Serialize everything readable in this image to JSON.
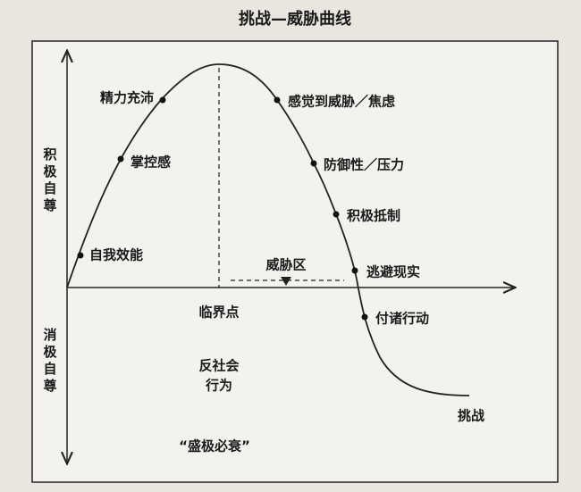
{
  "title": "挑战—威胁曲线",
  "axis_labels": {
    "positive": "积极自尊",
    "negative": "消极自尊"
  },
  "points": [
    {
      "label": "自我效能"
    },
    {
      "label": "掌控感"
    },
    {
      "label": "精力充沛"
    },
    {
      "label": "感觉到威胁／焦虑"
    },
    {
      "label": "防御性／压力"
    },
    {
      "label": "积极抵制"
    },
    {
      "label": "逃避现实"
    },
    {
      "label": "付诸行动"
    },
    {
      "label": "挑战"
    }
  ],
  "threat_zone": "威胁区",
  "tipping_point": "临界点",
  "antisocial": [
    "反社会",
    "行为"
  ],
  "saying": "“盛极必衰”"
}
